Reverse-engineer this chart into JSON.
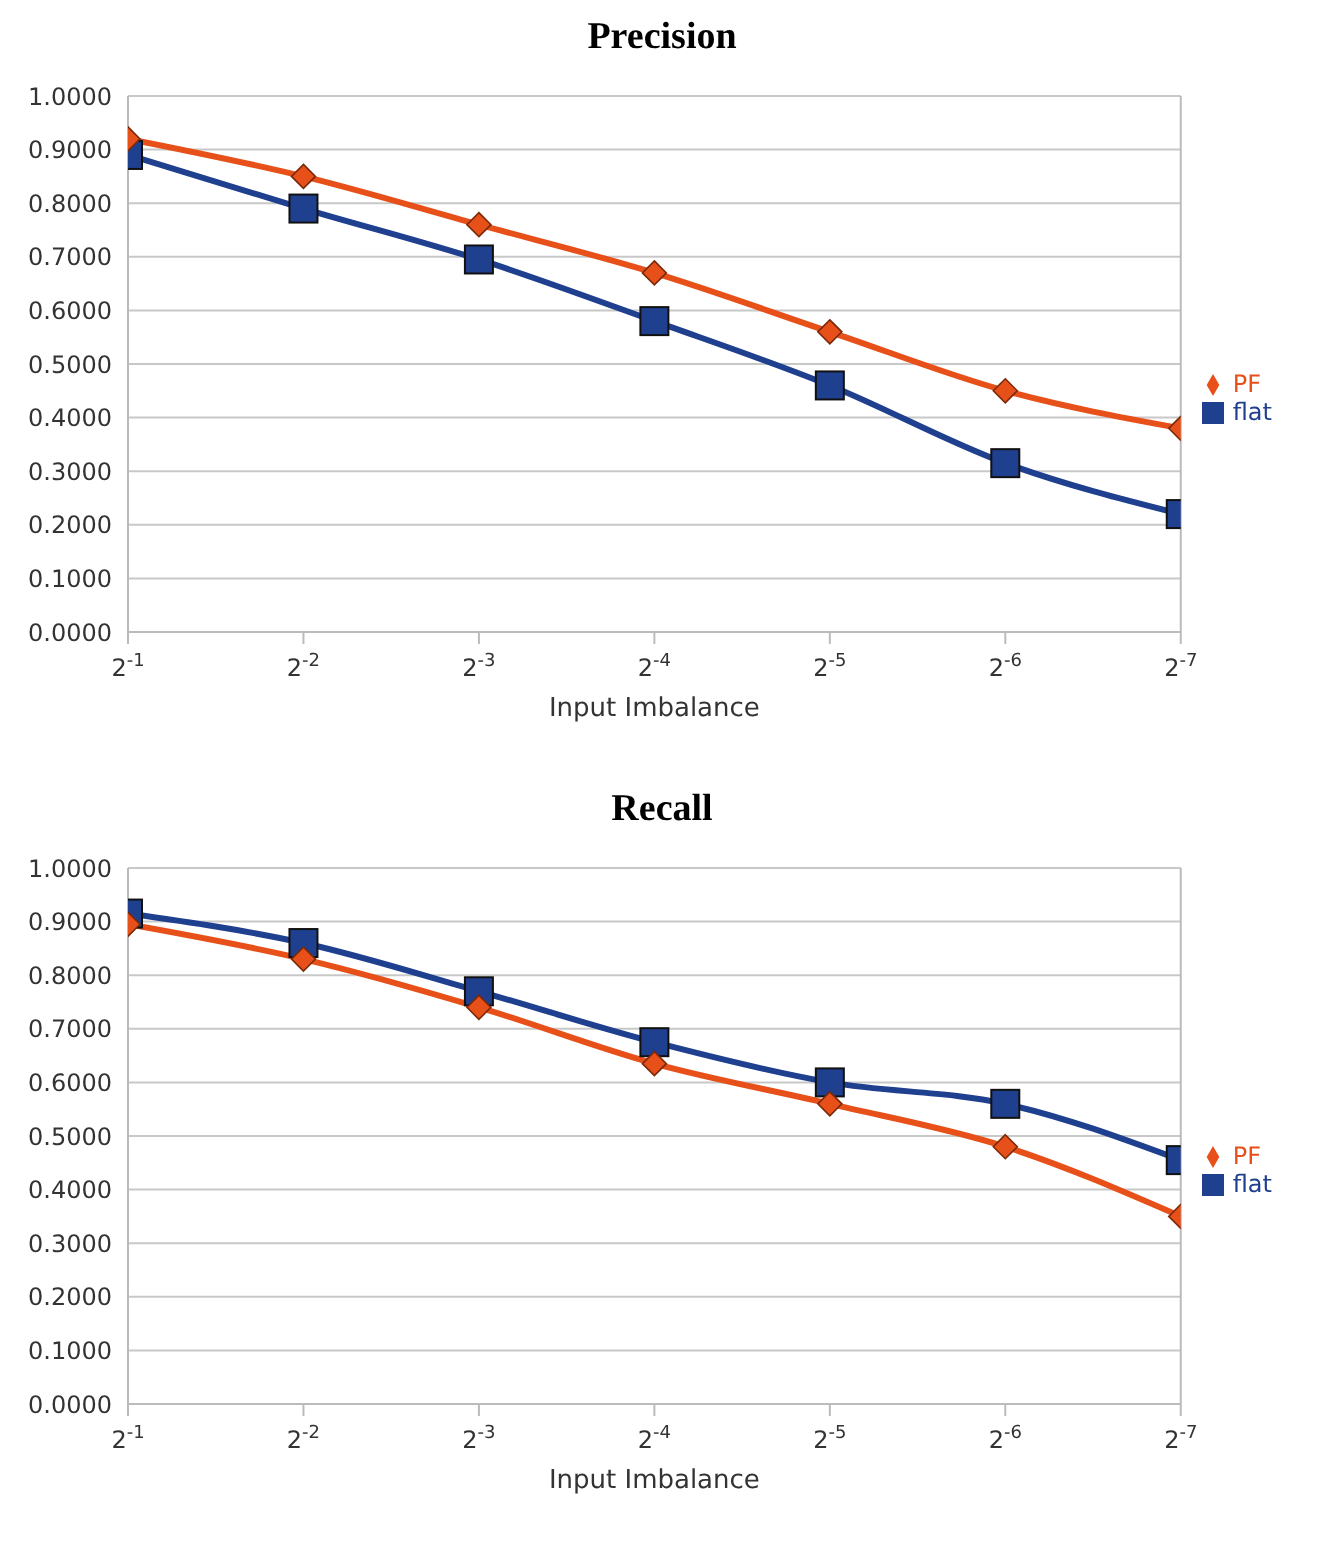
{
  "chart_data": [
    {
      "type": "line",
      "title": "Precision",
      "xlabel": "Input Imbalance",
      "categories": [
        "2$^{-1}$",
        "2$^{-2}$",
        "2$^{-3}$",
        "2$^{-4}$",
        "2$^{-5}$",
        "2$^{-6}$",
        "2$^{-7}$"
      ],
      "series": [
        {
          "name": "flat",
          "color": "#1f3f8f",
          "marker": "square",
          "values": [
            0.89,
            0.79,
            0.695,
            0.58,
            0.46,
            0.315,
            0.22
          ]
        },
        {
          "name": "PF",
          "color": "#e8501a",
          "marker": "diamond",
          "values": [
            0.92,
            0.85,
            0.76,
            0.67,
            0.56,
            0.45,
            0.38
          ]
        }
      ],
      "ylim": [
        0,
        1
      ],
      "yticks": [
        {
          "value": 0,
          "label": "0.0000"
        },
        {
          "value": 0.1,
          "label": "0.1000"
        },
        {
          "value": 0.2,
          "label": "0.2000"
        },
        {
          "value": 0.3,
          "label": "0.3000"
        },
        {
          "value": 0.4,
          "label": "0.4000"
        },
        {
          "value": 0.5,
          "label": "0.5000"
        },
        {
          "value": 0.6,
          "label": "0.6000"
        },
        {
          "value": 0.7,
          "label": "0.7000"
        },
        {
          "value": 0.8,
          "label": "0.8000"
        },
        {
          "value": 0.9,
          "label": "0.9000"
        },
        {
          "value": 1,
          "label": "1.0000"
        }
      ],
      "grid": "y",
      "legend": "right"
    },
    {
      "type": "line",
      "title": "Recall",
      "xlabel": "Input Imbalance",
      "categories": [
        "2$^{-1}$",
        "2$^{-2}$",
        "2$^{-3}$",
        "2$^{-4}$",
        "2$^{-5}$",
        "2$^{-6}$",
        "2$^{-7}$"
      ],
      "series": [
        {
          "name": "flat",
          "color": "#1f3f8f",
          "marker": "square",
          "values": [
            0.915,
            0.86,
            0.77,
            0.675,
            0.6,
            0.56,
            0.455
          ]
        },
        {
          "name": "PF",
          "color": "#e8501a",
          "marker": "diamond",
          "values": [
            0.895,
            0.83,
            0.74,
            0.635,
            0.56,
            0.48,
            0.35
          ]
        }
      ],
      "ylim": [
        0,
        1
      ],
      "yticks": [
        {
          "value": 0,
          "label": "0.0000"
        },
        {
          "value": 0.1,
          "label": "0.1000"
        },
        {
          "value": 0.2,
          "label": "0.2000"
        },
        {
          "value": 0.3,
          "label": "0.3000"
        },
        {
          "value": 0.4,
          "label": "0.4000"
        },
        {
          "value": 0.5,
          "label": "0.5000"
        },
        {
          "value": 0.6,
          "label": "0.6000"
        },
        {
          "value": 0.7,
          "label": "0.7000"
        },
        {
          "value": 0.8,
          "label": "0.8000"
        },
        {
          "value": 0.9,
          "label": "0.9000"
        },
        {
          "value": 1,
          "label": "1.0000"
        }
      ],
      "grid": "y",
      "legend": "right"
    }
  ]
}
